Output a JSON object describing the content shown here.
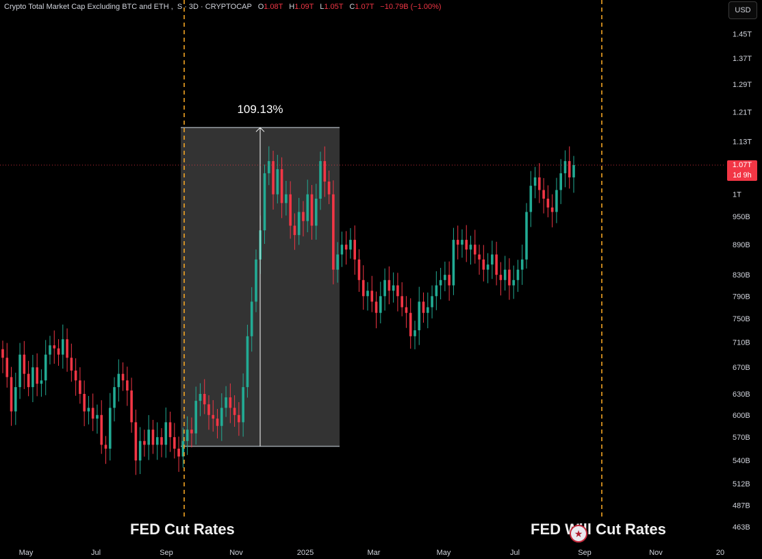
{
  "header": {
    "symbol_title": "Crypto Total Market Cap Excluding BTC and ETH",
    "subtitle": "S · 3D · CRYPTOCAP",
    "o_label": "O",
    "o_value": "1.08T",
    "h_label": "H",
    "h_value": "1.09T",
    "l_label": "L",
    "l_value": "1.05T",
    "c_label": "C",
    "c_value": "1.07T",
    "change": "−10.79B (−1.00%)"
  },
  "currency_button": "USD",
  "last_price": {
    "value": "1.07T",
    "countdown": "1d 9h"
  },
  "colors": {
    "up": "#22ab94",
    "down": "#f23645",
    "vline": "#f5a623",
    "range_box": "#383838"
  },
  "annotations": {
    "measure_label": "109.13%",
    "left_event": "FED Cut Rates",
    "right_event": "FED Will Cut Rates"
  },
  "chart_data": {
    "type": "candlestick",
    "scale": "log",
    "ylim": [
      448,
      1500
    ],
    "x_ticks": [
      "May",
      "Jul",
      "Sep",
      "Nov",
      "2025",
      "Mar",
      "May",
      "Jul",
      "Sep",
      "Nov",
      "20"
    ],
    "y_ticks": [
      "1.45T",
      "1.37T",
      "1.29T",
      "1.21T",
      "1.13T",
      "1T",
      "950B",
      "890B",
      "830B",
      "790B",
      "750B",
      "710B",
      "670B",
      "630B",
      "600B",
      "570B",
      "540B",
      "512B",
      "487B",
      "463B"
    ],
    "y_tick_values": [
      1450,
      1370,
      1290,
      1210,
      1130,
      1000,
      950,
      890,
      830,
      790,
      750,
      710,
      670,
      630,
      600,
      570,
      540,
      512,
      487,
      463
    ],
    "current_price": 1070,
    "close_series_billions": [
      685,
      655,
      605,
      640,
      690,
      660,
      640,
      670,
      645,
      650,
      690,
      705,
      700,
      690,
      715,
      685,
      665,
      650,
      630,
      605,
      610,
      595,
      600,
      560,
      555,
      610,
      640,
      660,
      650,
      635,
      590,
      540,
      565,
      560,
      580,
      560,
      570,
      560,
      590,
      570,
      555,
      545,
      565,
      580,
      575,
      620,
      630,
      615,
      600,
      595,
      585,
      610,
      625,
      610,
      600,
      590,
      640,
      720,
      780,
      860,
      920,
      1050,
      1080,
      1000,
      1060,
      980,
      1000,
      930,
      910,
      960,
      940,
      1000,
      930,
      990,
      1080,
      1030,
      1000,
      840,
      870,
      890,
      880,
      900,
      860,
      820,
      790,
      800,
      780,
      760,
      790,
      820,
      800,
      810,
      790,
      770,
      760,
      720,
      730,
      780,
      760,
      770,
      790,
      810,
      820,
      830,
      810,
      900,
      890,
      900,
      880,
      890,
      870,
      860,
      840,
      850,
      870,
      830,
      820,
      840,
      810,
      820,
      840,
      860,
      960,
      1020,
      1040,
      1010,
      990,
      970,
      960,
      1010,
      1050,
      1080,
      1040,
      1070
    ],
    "measure_range": {
      "from": 558,
      "to": 1167,
      "change_pct": 109.13
    },
    "events": [
      {
        "label": "FED Cut Rates",
        "date": "Sep 2024"
      },
      {
        "label": "FED Will Cut Rates",
        "date": "Sep 2025"
      }
    ]
  }
}
